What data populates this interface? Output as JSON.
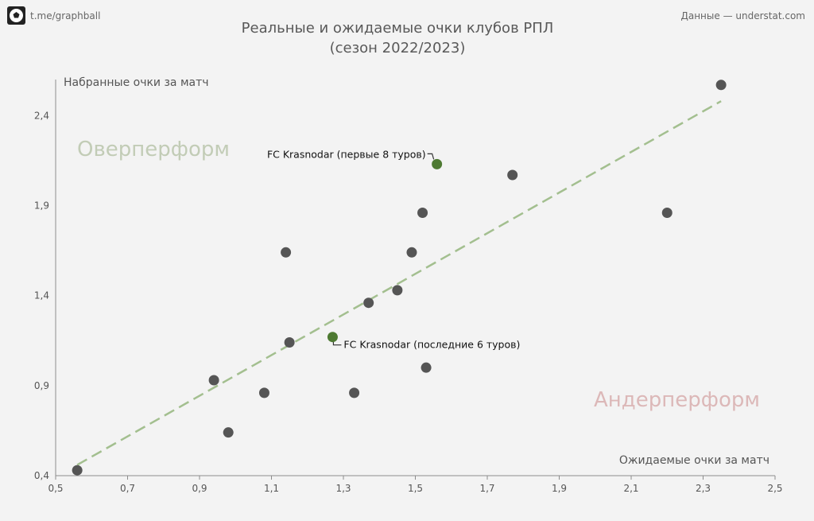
{
  "header": {
    "source_handle": "t.me/graphball",
    "data_credit": "Данные — understat.com"
  },
  "colors": {
    "background": "#f3f3f3",
    "point": "#555555",
    "highlight": "#4e7a32",
    "trend": "#a3bf8f",
    "over_label": "#c2ccb6",
    "under_label": "#dcb8b8",
    "text": "#555555"
  },
  "icons": {
    "logo": "soccer-ball-icon"
  },
  "chart_data": {
    "type": "scatter",
    "title": "Реальные и ожидаемые очки клубов РПЛ",
    "subtitle": "(сезон 2022/2023)",
    "xlabel": "Ожидаемые очки за матч",
    "ylabel": "Набранные очки за матч",
    "xlim": [
      0.5,
      2.5
    ],
    "ylim": [
      0.4,
      2.6
    ],
    "xticks": [
      "0,5",
      "0,7",
      "0,9",
      "1,1",
      "1,3",
      "1,5",
      "1,7",
      "1,9",
      "2,1",
      "2,3",
      "2,5"
    ],
    "yticks": [
      "0,4",
      "0,9",
      "1,4",
      "1,9",
      "2,4"
    ],
    "grid": false,
    "region_labels": {
      "over": "Оверперформ",
      "under": "Андерперформ"
    },
    "trend_line": {
      "style": "dashed",
      "from": [
        0.56,
        0.46
      ],
      "to": [
        2.35,
        2.48
      ]
    },
    "points": [
      {
        "x": 0.56,
        "y": 0.43
      },
      {
        "x": 0.94,
        "y": 0.93
      },
      {
        "x": 0.98,
        "y": 0.64
      },
      {
        "x": 1.08,
        "y": 0.86
      },
      {
        "x": 1.14,
        "y": 1.64
      },
      {
        "x": 1.15,
        "y": 1.14
      },
      {
        "x": 1.33,
        "y": 0.86
      },
      {
        "x": 1.37,
        "y": 1.36
      },
      {
        "x": 1.45,
        "y": 1.43
      },
      {
        "x": 1.49,
        "y": 1.64
      },
      {
        "x": 1.52,
        "y": 1.86
      },
      {
        "x": 1.53,
        "y": 1.0
      },
      {
        "x": 1.77,
        "y": 2.07
      },
      {
        "x": 2.2,
        "y": 1.86
      },
      {
        "x": 2.35,
        "y": 2.57
      }
    ],
    "highlights": [
      {
        "x": 1.56,
        "y": 2.13,
        "label": "FC Krasnodar (первые 8 туров)",
        "label_side": "left"
      },
      {
        "x": 1.27,
        "y": 1.17,
        "label": "FC Krasnodar (последние 6 туров)",
        "label_side": "right"
      }
    ]
  }
}
